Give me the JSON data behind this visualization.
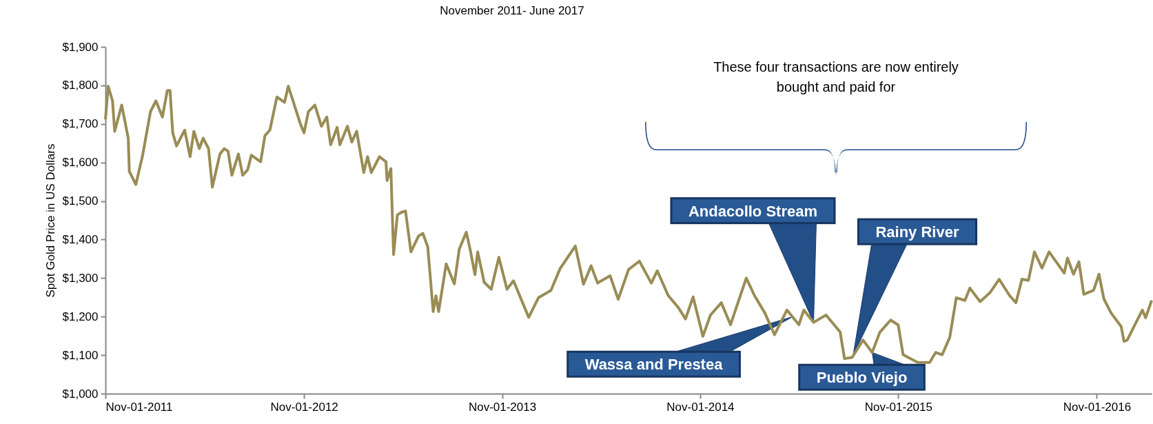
{
  "chart_data": {
    "type": "line",
    "title": "November 2011- June 2017",
    "ylabel": "Spot Gold Price in US Dollars",
    "color": "#998c55",
    "marker": "none",
    "line_style": "solid",
    "x": [
      "2011-11-01",
      "2011-11-06",
      "2011-11-14",
      "2011-11-18",
      "2011-12-01",
      "2011-12-13",
      "2011-12-15",
      "2011-12-27",
      "2012-01-08",
      "2012-01-23",
      "2012-02-02",
      "2012-02-14",
      "2012-02-23",
      "2012-02-28",
      "2012-03-04",
      "2012-03-11",
      "2012-03-26",
      "2012-04-05",
      "2012-04-12",
      "2012-04-22",
      "2012-04-29",
      "2012-05-09",
      "2012-05-16",
      "2012-05-30",
      "2012-06-07",
      "2012-06-14",
      "2012-06-21",
      "2012-07-03",
      "2012-07-11",
      "2012-07-20",
      "2012-07-27",
      "2012-08-13",
      "2012-08-21",
      "2012-08-30",
      "2012-09-12",
      "2012-09-26",
      "2012-10-03",
      "2012-10-18",
      "2012-10-25",
      "2012-11-01",
      "2012-11-09",
      "2012-11-21",
      "2012-12-03",
      "2012-12-13",
      "2012-12-20",
      "2013-01-01",
      "2013-01-06",
      "2013-01-20",
      "2013-01-28",
      "2013-02-06",
      "2013-02-19",
      "2013-02-26",
      "2013-03-05",
      "2013-03-20",
      "2013-04-01",
      "2013-04-03",
      "2013-04-10",
      "2013-04-15",
      "2013-04-22",
      "2013-04-30",
      "2013-05-07",
      "2013-05-17",
      "2013-05-31",
      "2013-06-08",
      "2013-06-17",
      "2013-06-27",
      "2013-07-02",
      "2013-07-07",
      "2013-07-21",
      "2013-08-05",
      "2013-08-14",
      "2013-08-27",
      "2013-09-03",
      "2013-09-12",
      "2013-09-17",
      "2013-09-29",
      "2013-10-12",
      "2013-10-26",
      "2013-11-10",
      "2013-11-22",
      "2013-12-20",
      "2014-01-07",
      "2014-01-30",
      "2014-02-16",
      "2014-03-16",
      "2014-03-31",
      "2014-04-14",
      "2014-04-26",
      "2014-05-19",
      "2014-06-03",
      "2014-06-22",
      "2014-07-12",
      "2014-08-03",
      "2014-08-14",
      "2014-09-03",
      "2014-09-22",
      "2014-10-05",
      "2014-10-19",
      "2014-11-06",
      "2014-11-20",
      "2014-12-10",
      "2014-12-27",
      "2015-01-25",
      "2015-02-09",
      "2015-02-28",
      "2015-03-18",
      "2015-04-10",
      "2015-05-02",
      "2015-05-11",
      "2015-05-29",
      "2015-06-21",
      "2015-07-17",
      "2015-07-25",
      "2015-08-08",
      "2015-08-28",
      "2015-09-14",
      "2015-09-28",
      "2015-10-18",
      "2015-11-01",
      "2015-11-10",
      "2015-12-07",
      "2015-12-29",
      "2016-01-09",
      "2016-01-21",
      "2016-02-04",
      "2016-02-16",
      "2016-03-03",
      "2016-03-12",
      "2016-03-31",
      "2016-04-18",
      "2016-05-05",
      "2016-05-24",
      "2016-06-05",
      "2016-06-16",
      "2016-06-28",
      "2016-07-09",
      "2016-07-23",
      "2016-08-05",
      "2016-09-02",
      "2016-09-08",
      "2016-09-19",
      "2016-09-29",
      "2016-10-08",
      "2016-10-26",
      "2016-11-05",
      "2016-11-14",
      "2016-11-27",
      "2016-12-16",
      "2016-12-21",
      "2016-12-27",
      "2017-01-12",
      "2017-01-24",
      "2017-01-30",
      "2017-02-10"
    ],
    "values": [
      1712,
      1798,
      1760,
      1681,
      1749,
      1663,
      1577,
      1543,
      1615,
      1732,
      1760,
      1718,
      1787,
      1787,
      1677,
      1643,
      1684,
      1615,
      1681,
      1636,
      1663,
      1636,
      1536,
      1622,
      1636,
      1629,
      1567,
      1622,
      1567,
      1581,
      1619,
      1602,
      1670,
      1684,
      1770,
      1756,
      1798,
      1732,
      1701,
      1677,
      1732,
      1749,
      1694,
      1718,
      1646,
      1691,
      1646,
      1694,
      1653,
      1681,
      1574,
      1615,
      1574,
      1615,
      1602,
      1553,
      1584,
      1361,
      1464,
      1471,
      1474,
      1368,
      1409,
      1416,
      1381,
      1213,
      1254,
      1213,
      1337,
      1285,
      1375,
      1419,
      1375,
      1309,
      1368,
      1289,
      1271,
      1354,
      1271,
      1293,
      1198,
      1249,
      1268,
      1325,
      1383,
      1284,
      1332,
      1287,
      1306,
      1245,
      1322,
      1344,
      1287,
      1319,
      1255,
      1223,
      1194,
      1251,
      1149,
      1204,
      1236,
      1179,
      1300,
      1255,
      1210,
      1153,
      1217,
      1179,
      1217,
      1185,
      1204,
      1160,
      1091,
      1094,
      1139,
      1107,
      1159,
      1191,
      1178,
      1101,
      1081,
      1081,
      1107,
      1101,
      1146,
      1249,
      1242,
      1274,
      1239,
      1262,
      1297,
      1255,
      1236,
      1297,
      1294,
      1368,
      1326,
      1368,
      1313,
      1352,
      1310,
      1342,
      1258,
      1268,
      1310,
      1246,
      1210,
      1174,
      1136,
      1139,
      1184,
      1217,
      1197,
      1242
    ],
    "xlim": [
      "2011-11-01",
      "2017-02-10"
    ],
    "xticks": [
      {
        "value": "2011-11-01",
        "label": "Nov-01-2011"
      },
      {
        "value": "2012-11-01",
        "label": "Nov-01-2012"
      },
      {
        "value": "2013-11-01",
        "label": "Nov-01-2013"
      },
      {
        "value": "2014-11-01",
        "label": "Nov-01-2014"
      },
      {
        "value": "2015-11-01",
        "label": "Nov-01-2015"
      },
      {
        "value": "2016-11-01",
        "label": "Nov-01-2016"
      }
    ],
    "ylim": [
      1000,
      1900
    ],
    "yticks": [
      {
        "value": 1000,
        "label": "$1,000"
      },
      {
        "value": 1100,
        "label": "$1,100"
      },
      {
        "value": 1200,
        "label": "$1,200"
      },
      {
        "value": 1300,
        "label": "$1,300"
      },
      {
        "value": 1400,
        "label": "$1,400"
      },
      {
        "value": 1500,
        "label": "$1,500"
      },
      {
        "value": 1600,
        "label": "$1,600"
      },
      {
        "value": 1700,
        "label": "$1,700"
      },
      {
        "value": 1800,
        "label": "$1,800"
      },
      {
        "value": 1900,
        "label": "$1,900"
      }
    ],
    "annotations": [
      "These four transactions are now entirely bought and paid for",
      {
        "text": "Andacollo Stream",
        "x": "2015-05-29",
        "y": 1185
      },
      {
        "text": "Rainy River",
        "x": "2015-08-10",
        "y": 1100
      },
      {
        "text": "Wassa and Prestea",
        "x": "2015-04-21",
        "y": 1200
      },
      {
        "text": "Pueblo Viejo",
        "x": "2015-09-14",
        "y": 1107
      }
    ]
  }
}
